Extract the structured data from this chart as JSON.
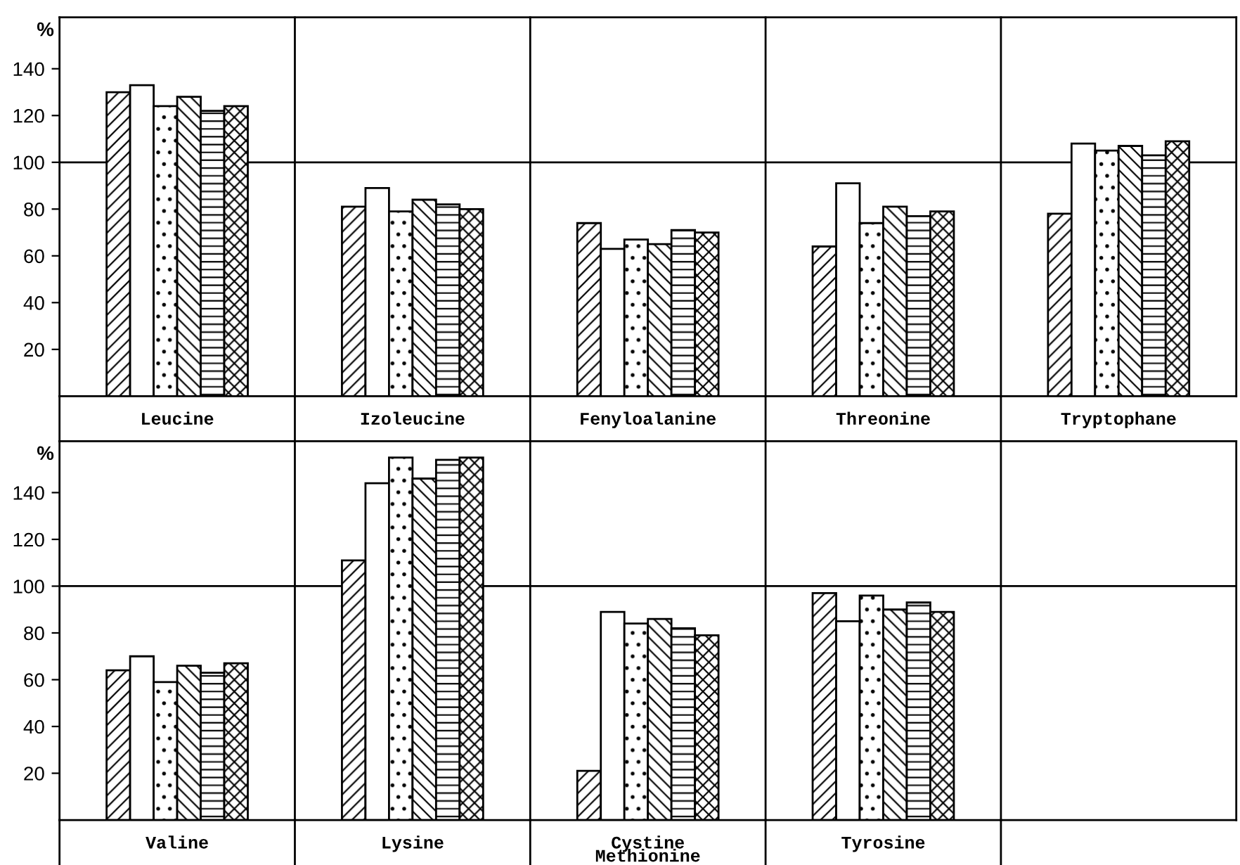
{
  "chart_data": [
    {
      "type": "bar",
      "ylabel": "%",
      "categories": [
        "Leucine",
        "Izoleucine",
        "Fenyloalanine",
        "Threonine",
        "Tryptophane"
      ],
      "ylim": [
        0,
        162
      ],
      "yticks": [
        20,
        40,
        60,
        80,
        100,
        120,
        140
      ],
      "ref_lines": [
        {
          "axis": "y",
          "value": 100,
          "color": "#000000"
        }
      ],
      "series": [
        {
          "color": "#000000",
          "values": [
            130,
            81,
            74,
            64,
            78
          ]
        },
        {
          "color": "#ffffff",
          "values": [
            133,
            89,
            63,
            91,
            108
          ]
        },
        {
          "color": "#000000",
          "values": [
            124,
            79,
            67,
            74,
            105
          ]
        },
        {
          "color": "#000000",
          "values": [
            128,
            84,
            65,
            81,
            107
          ]
        },
        {
          "color": "#000000",
          "values": [
            122,
            82,
            71,
            77,
            103
          ]
        },
        {
          "color": "#000000",
          "values": [
            124,
            80,
            70,
            79,
            109
          ]
        }
      ]
    },
    {
      "type": "bar",
      "ylabel": "%",
      "categories": [
        "Valine",
        "Lysine",
        "Cystine\nMethionine",
        "Tyrosine",
        null
      ],
      "ylim": [
        0,
        162
      ],
      "yticks": [
        20,
        40,
        60,
        80,
        100,
        120,
        140
      ],
      "ref_lines": [
        {
          "axis": "y",
          "value": 100,
          "color": "#000000"
        }
      ],
      "series": [
        {
          "color": "#000000",
          "values": [
            64,
            111,
            21,
            97,
            null
          ]
        },
        {
          "color": "#ffffff",
          "values": [
            70,
            144,
            89,
            85,
            null
          ]
        },
        {
          "color": "#000000",
          "values": [
            59,
            155,
            84,
            96,
            null
          ]
        },
        {
          "color": "#000000",
          "values": [
            66,
            146,
            86,
            90,
            null
          ]
        },
        {
          "color": "#000000",
          "values": [
            63,
            154,
            82,
            93,
            null
          ]
        },
        {
          "color": "#000000",
          "values": [
            67,
            155,
            79,
            89,
            null
          ]
        }
      ]
    }
  ]
}
